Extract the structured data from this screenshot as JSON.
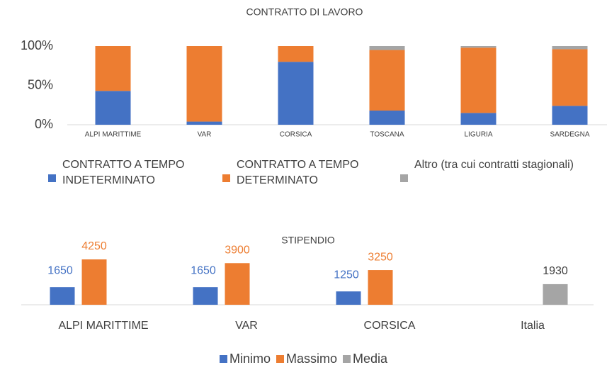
{
  "chart_data": [
    {
      "type": "stacked_bar",
      "title": "CONTRATTO DI LAVORO",
      "categories": [
        "ALPI MARITTIME",
        "VAR",
        "CORSICA",
        "TOSCANA",
        "LIGURIA",
        "SARDEGNA"
      ],
      "series": [
        {
          "name": "CONTRATTO A TEMPO INDETERMINATO",
          "color": "#4472c4",
          "values": [
            43,
            4,
            80,
            18,
            15,
            24
          ]
        },
        {
          "name": "CONTRATTO A TEMPO DETERMINATO",
          "color": "#ed7d31",
          "values": [
            57,
            96,
            20,
            77,
            83,
            72
          ]
        },
        {
          "name": "Altro (tra cui contratti stagionali)",
          "color": "#a5a5a5",
          "values": [
            0,
            0,
            0,
            5,
            2,
            4
          ]
        }
      ],
      "ylim": [
        0,
        100
      ],
      "yticks": [
        {
          "value": 0,
          "label": "0%"
        },
        {
          "value": 50,
          "label": "50%"
        },
        {
          "value": 100,
          "label": "100%"
        }
      ],
      "legend": "bottom"
    },
    {
      "type": "bar",
      "title": "STIPENDIO",
      "categories": [
        "ALPI MARITTIME",
        "VAR",
        "CORSICA",
        "Italia"
      ],
      "series": [
        {
          "name": "Minimo",
          "color": "#4472c4",
          "values": [
            1650,
            1650,
            1250,
            null
          ]
        },
        {
          "name": "Massimo",
          "color": "#ed7d31",
          "values": [
            4250,
            3900,
            3250,
            null
          ]
        },
        {
          "name": "Media",
          "color": "#a5a5a5",
          "values": [
            null,
            null,
            null,
            1930
          ]
        }
      ],
      "legend": "bottom"
    }
  ]
}
